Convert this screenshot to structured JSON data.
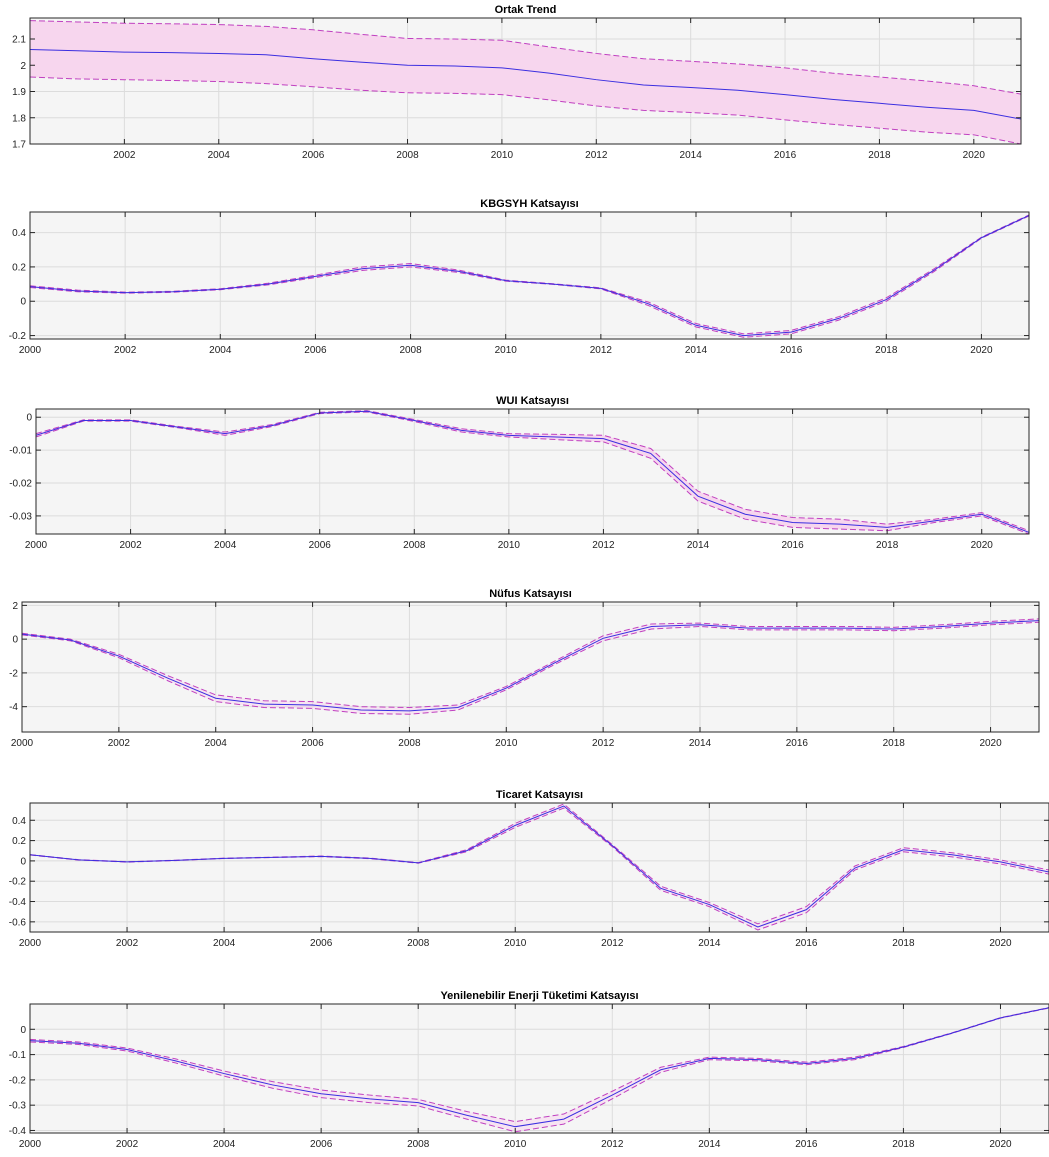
{
  "colors": {
    "mean_line": "#3b2fe0",
    "band_line": "#c040c0",
    "band_fill": "#f7d6ee",
    "axes_bg": "#f5f5f5",
    "grid": "#dcdcdc"
  },
  "chart_data": [
    {
      "type": "line",
      "title": "Ortak Trend",
      "xlim": [
        2000,
        2021
      ],
      "ylim": [
        1.7,
        2.18
      ],
      "xticks": [
        "2002",
        "2004",
        "2006",
        "2008",
        "2010",
        "2012",
        "2014",
        "2016",
        "2018",
        "2020"
      ],
      "yticks": [
        "1.7",
        "1.8",
        "1.9",
        "2",
        "2.1"
      ],
      "band_filled": true,
      "grid": true,
      "x": [
        2000,
        2001,
        2002,
        2003,
        2004,
        2005,
        2006,
        2007,
        2008,
        2009,
        2010,
        2011,
        2012,
        2013,
        2014,
        2015,
        2016,
        2017,
        2018,
        2019,
        2020,
        2021
      ],
      "series": [
        {
          "role": "mean",
          "values": [
            2.06,
            2.055,
            2.05,
            2.048,
            2.045,
            2.04,
            2.025,
            2.012,
            2.0,
            1.997,
            1.99,
            1.97,
            1.945,
            1.925,
            1.915,
            1.905,
            1.888,
            1.87,
            1.855,
            1.84,
            1.828,
            1.795
          ]
        },
        {
          "role": "upper",
          "values": [
            2.17,
            2.165,
            2.16,
            2.158,
            2.155,
            2.148,
            2.135,
            2.118,
            2.102,
            2.1,
            2.095,
            2.07,
            2.045,
            2.025,
            2.015,
            2.005,
            1.99,
            1.97,
            1.955,
            1.94,
            1.922,
            1.89
          ]
        },
        {
          "role": "lower",
          "values": [
            1.955,
            1.948,
            1.945,
            1.942,
            1.938,
            1.93,
            1.918,
            1.905,
            1.895,
            1.893,
            1.888,
            1.868,
            1.845,
            1.828,
            1.82,
            1.81,
            1.792,
            1.775,
            1.76,
            1.745,
            1.735,
            1.7
          ]
        }
      ]
    },
    {
      "type": "line",
      "title": "KBGSYH Katsayısı",
      "xlim": [
        2000,
        2021
      ],
      "ylim": [
        -0.22,
        0.52
      ],
      "xticks": [
        "2000",
        "2002",
        "2004",
        "2006",
        "2008",
        "2010",
        "2012",
        "2014",
        "2016",
        "2018",
        "2020"
      ],
      "yticks": [
        "-0.2",
        "0",
        "0.2",
        "0.4"
      ],
      "band_filled": false,
      "grid": true,
      "x": [
        2000,
        2001,
        2002,
        2003,
        2004,
        2005,
        2006,
        2007,
        2008,
        2009,
        2010,
        2011,
        2012,
        2013,
        2014,
        2015,
        2016,
        2017,
        2018,
        2019,
        2020,
        2021
      ],
      "series": [
        {
          "role": "mean",
          "values": [
            0.085,
            0.06,
            0.05,
            0.055,
            0.07,
            0.1,
            0.145,
            0.19,
            0.21,
            0.175,
            0.12,
            0.1,
            0.075,
            -0.015,
            -0.14,
            -0.2,
            -0.18,
            -0.1,
            0.01,
            0.18,
            0.37,
            0.5
          ]
        },
        {
          "role": "upper",
          "values": [
            0.09,
            0.065,
            0.053,
            0.058,
            0.073,
            0.105,
            0.152,
            0.2,
            0.22,
            0.182,
            0.123,
            0.102,
            0.078,
            -0.005,
            -0.13,
            -0.19,
            -0.17,
            -0.09,
            0.02,
            0.188,
            0.373,
            0.503
          ]
        },
        {
          "role": "lower",
          "values": [
            0.08,
            0.055,
            0.047,
            0.052,
            0.067,
            0.095,
            0.138,
            0.18,
            0.2,
            0.168,
            0.117,
            0.098,
            0.072,
            -0.025,
            -0.15,
            -0.21,
            -0.19,
            -0.11,
            0.0,
            0.172,
            0.367,
            0.497
          ]
        }
      ]
    },
    {
      "type": "line",
      "title": "WUI Katsayısı",
      "xlim": [
        2000,
        2021
      ],
      "ylim": [
        -0.0355,
        0.0025
      ],
      "xticks": [
        "2000",
        "2002",
        "2004",
        "2006",
        "2008",
        "2010",
        "2012",
        "2014",
        "2016",
        "2018",
        "2020"
      ],
      "yticks": [
        "-0.03",
        "-0.02",
        "-0.01",
        "0"
      ],
      "band_filled": true,
      "grid": true,
      "x": [
        2000,
        2001,
        2002,
        2003,
        2004,
        2005,
        2006,
        2007,
        2008,
        2009,
        2010,
        2011,
        2012,
        2013,
        2014,
        2015,
        2016,
        2017,
        2018,
        2019,
        2020,
        2021
      ],
      "series": [
        {
          "role": "mean",
          "values": [
            -0.0055,
            -0.001,
            -0.001,
            -0.003,
            -0.005,
            -0.0025,
            0.0013,
            0.0018,
            -0.001,
            -0.004,
            -0.0055,
            -0.006,
            -0.0065,
            -0.011,
            -0.024,
            -0.0295,
            -0.032,
            -0.0325,
            -0.0335,
            -0.0315,
            -0.0295,
            -0.035
          ]
        },
        {
          "role": "upper",
          "values": [
            -0.005,
            -0.0008,
            -0.0008,
            -0.0028,
            -0.0045,
            -0.0022,
            0.0015,
            0.002,
            -0.0007,
            -0.0035,
            -0.005,
            -0.0052,
            -0.0055,
            -0.0095,
            -0.0225,
            -0.028,
            -0.0305,
            -0.031,
            -0.0325,
            -0.031,
            -0.029,
            -0.0345
          ]
        },
        {
          "role": "lower",
          "values": [
            -0.006,
            -0.0012,
            -0.0012,
            -0.0032,
            -0.0055,
            -0.0028,
            0.0011,
            0.0016,
            -0.0013,
            -0.0045,
            -0.006,
            -0.0068,
            -0.0075,
            -0.0125,
            -0.0255,
            -0.031,
            -0.0335,
            -0.034,
            -0.0345,
            -0.032,
            -0.03,
            -0.0355
          ]
        }
      ]
    },
    {
      "type": "line",
      "title": "Nüfus Katsayısı",
      "xlim": [
        2000,
        2021
      ],
      "ylim": [
        -5.5,
        2.2
      ],
      "xticks": [
        "2000",
        "2002",
        "2004",
        "2006",
        "2008",
        "2010",
        "2012",
        "2014",
        "2016",
        "2018",
        "2020"
      ],
      "yticks": [
        "-4",
        "-2",
        "0",
        "2"
      ],
      "band_filled": false,
      "grid": true,
      "x": [
        2000,
        2001,
        2002,
        2003,
        2004,
        2005,
        2006,
        2007,
        2008,
        2009,
        2010,
        2011,
        2012,
        2013,
        2014,
        2015,
        2016,
        2017,
        2018,
        2019,
        2020,
        2021
      ],
      "series": [
        {
          "role": "mean",
          "values": [
            0.3,
            -0.05,
            -1.0,
            -2.3,
            -3.5,
            -3.85,
            -3.9,
            -4.2,
            -4.25,
            -4.05,
            -2.9,
            -1.4,
            0.05,
            0.75,
            0.85,
            0.65,
            0.65,
            0.65,
            0.6,
            0.75,
            0.95,
            1.1
          ]
        },
        {
          "role": "upper",
          "values": [
            0.35,
            0.0,
            -0.9,
            -2.15,
            -3.3,
            -3.65,
            -3.7,
            -4.0,
            -4.05,
            -3.9,
            -2.8,
            -1.3,
            0.2,
            0.9,
            0.95,
            0.75,
            0.75,
            0.75,
            0.7,
            0.85,
            1.05,
            1.2
          ]
        },
        {
          "role": "lower",
          "values": [
            0.25,
            -0.1,
            -1.1,
            -2.45,
            -3.7,
            -4.05,
            -4.1,
            -4.4,
            -4.45,
            -4.2,
            -3.0,
            -1.5,
            -0.1,
            0.6,
            0.75,
            0.55,
            0.55,
            0.55,
            0.5,
            0.65,
            0.85,
            1.0
          ]
        }
      ]
    },
    {
      "type": "line",
      "title": "Ticaret Katsayısı",
      "xlim": [
        2000,
        2021
      ],
      "ylim": [
        -0.7,
        0.57
      ],
      "xticks": [
        "2000",
        "2002",
        "2004",
        "2006",
        "2008",
        "2010",
        "2012",
        "2014",
        "2016",
        "2018",
        "2020"
      ],
      "yticks": [
        "-0.6",
        "-0.4",
        "-0.2",
        "0",
        "0.2",
        "0.4"
      ],
      "band_filled": false,
      "grid": true,
      "x": [
        2000,
        2001,
        2002,
        2003,
        2004,
        2005,
        2006,
        2007,
        2008,
        2009,
        2010,
        2011,
        2012,
        2013,
        2014,
        2015,
        2016,
        2017,
        2018,
        2019,
        2020,
        2021
      ],
      "series": [
        {
          "role": "mean",
          "values": [
            0.06,
            0.01,
            -0.01,
            0.005,
            0.025,
            0.035,
            0.045,
            0.025,
            -0.02,
            0.1,
            0.35,
            0.54,
            0.15,
            -0.27,
            -0.43,
            -0.65,
            -0.48,
            -0.07,
            0.11,
            0.06,
            -0.01,
            -0.11
          ]
        },
        {
          "role": "upper",
          "values": [
            0.062,
            0.012,
            -0.008,
            0.007,
            0.027,
            0.037,
            0.048,
            0.028,
            -0.017,
            0.11,
            0.37,
            0.56,
            0.16,
            -0.25,
            -0.41,
            -0.62,
            -0.45,
            -0.05,
            0.13,
            0.08,
            0.01,
            -0.09
          ]
        },
        {
          "role": "lower",
          "values": [
            0.058,
            0.008,
            -0.012,
            0.003,
            0.023,
            0.033,
            0.042,
            0.022,
            -0.023,
            0.09,
            0.33,
            0.52,
            0.14,
            -0.29,
            -0.45,
            -0.68,
            -0.51,
            -0.09,
            0.09,
            0.04,
            -0.03,
            -0.13
          ]
        }
      ]
    },
    {
      "type": "line",
      "title": "Yenilenebilir Enerji Tüketimi Katsayısı",
      "xlim": [
        2000,
        2021
      ],
      "ylim": [
        -0.41,
        0.1
      ],
      "xticks": [
        "2000",
        "2002",
        "2004",
        "2006",
        "2008",
        "2010",
        "2012",
        "2014",
        "2016",
        "2018",
        "2020"
      ],
      "yticks": [
        "-0.4",
        "-0.3",
        "-0.2",
        "-0.1",
        "0"
      ],
      "band_filled": false,
      "grid": true,
      "x": [
        2000,
        2001,
        2002,
        2003,
        2004,
        2005,
        2006,
        2007,
        2008,
        2009,
        2010,
        2011,
        2012,
        2013,
        2014,
        2015,
        2016,
        2017,
        2018,
        2019,
        2020,
        2021
      ],
      "series": [
        {
          "role": "mean",
          "values": [
            -0.045,
            -0.055,
            -0.08,
            -0.125,
            -0.175,
            -0.22,
            -0.255,
            -0.275,
            -0.29,
            -0.34,
            -0.385,
            -0.355,
            -0.26,
            -0.16,
            -0.115,
            -0.12,
            -0.135,
            -0.115,
            -0.07,
            -0.015,
            0.045,
            0.085
          ]
        },
        {
          "role": "upper",
          "values": [
            -0.04,
            -0.05,
            -0.074,
            -0.117,
            -0.165,
            -0.207,
            -0.24,
            -0.26,
            -0.277,
            -0.325,
            -0.365,
            -0.335,
            -0.245,
            -0.15,
            -0.11,
            -0.115,
            -0.13,
            -0.11,
            -0.068,
            -0.014,
            0.046,
            0.086
          ]
        },
        {
          "role": "lower",
          "values": [
            -0.05,
            -0.06,
            -0.086,
            -0.133,
            -0.185,
            -0.233,
            -0.27,
            -0.29,
            -0.303,
            -0.355,
            -0.405,
            -0.375,
            -0.275,
            -0.17,
            -0.12,
            -0.125,
            -0.14,
            -0.12,
            -0.072,
            -0.016,
            0.044,
            0.084
          ]
        }
      ]
    }
  ]
}
